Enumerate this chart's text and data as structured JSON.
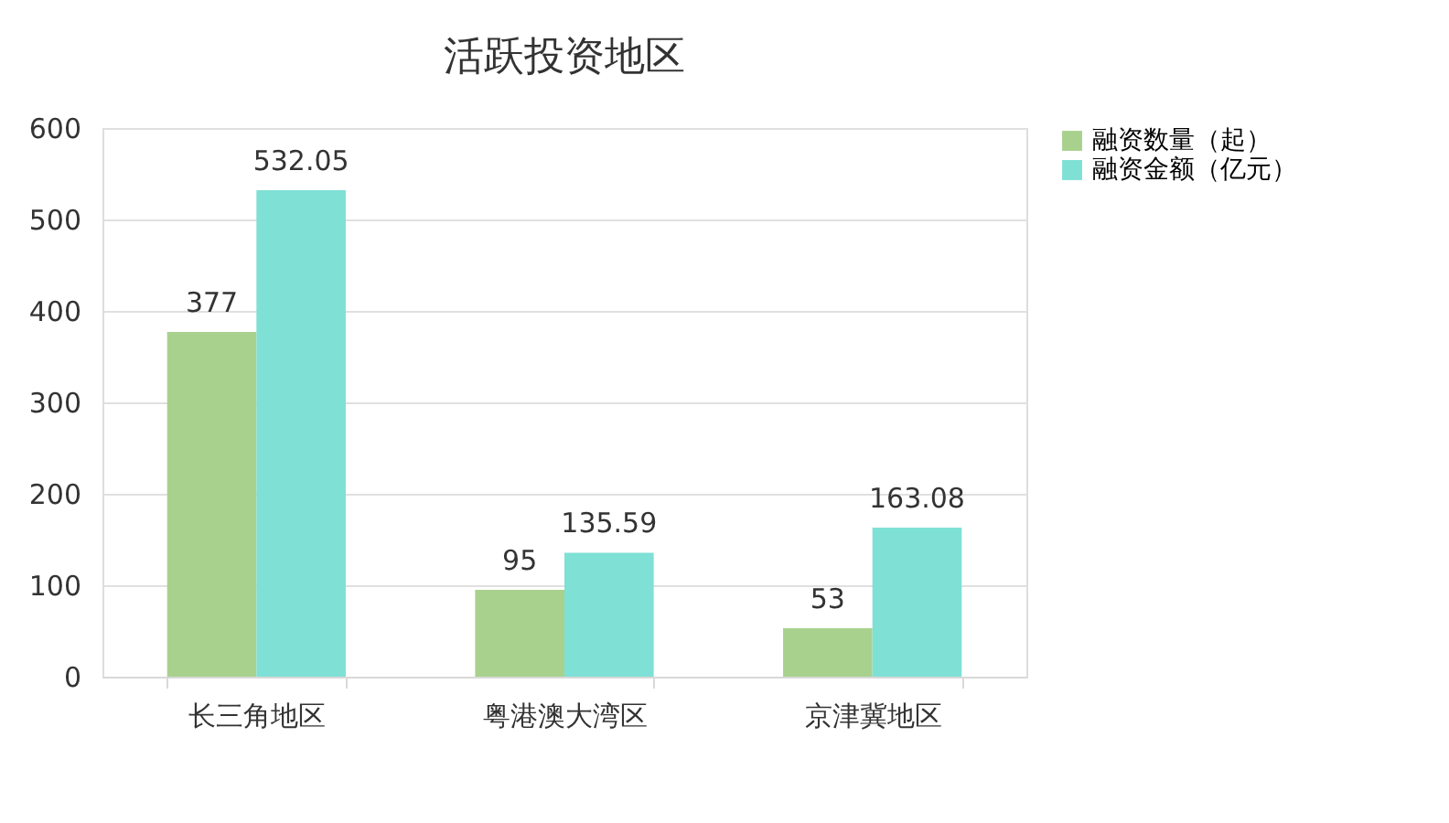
{
  "chart_data": {
    "type": "bar",
    "title": "活跃投资地区",
    "categories": [
      "长三角地区",
      "粤港澳大湾区",
      "京津冀地区"
    ],
    "series": [
      {
        "name": "融资数量（起）",
        "color": "#a9d18e",
        "values": [
          377,
          95,
          53
        ]
      },
      {
        "name": "融资金额（亿元）",
        "color": "#7fe0d6",
        "values": [
          532.05,
          135.59,
          163.08
        ]
      }
    ],
    "ylim": [
      0,
      600
    ],
    "yticks": [
      0,
      100,
      200,
      300,
      400,
      500,
      600
    ],
    "grid": "y",
    "legend": "right",
    "data_labels": true
  }
}
